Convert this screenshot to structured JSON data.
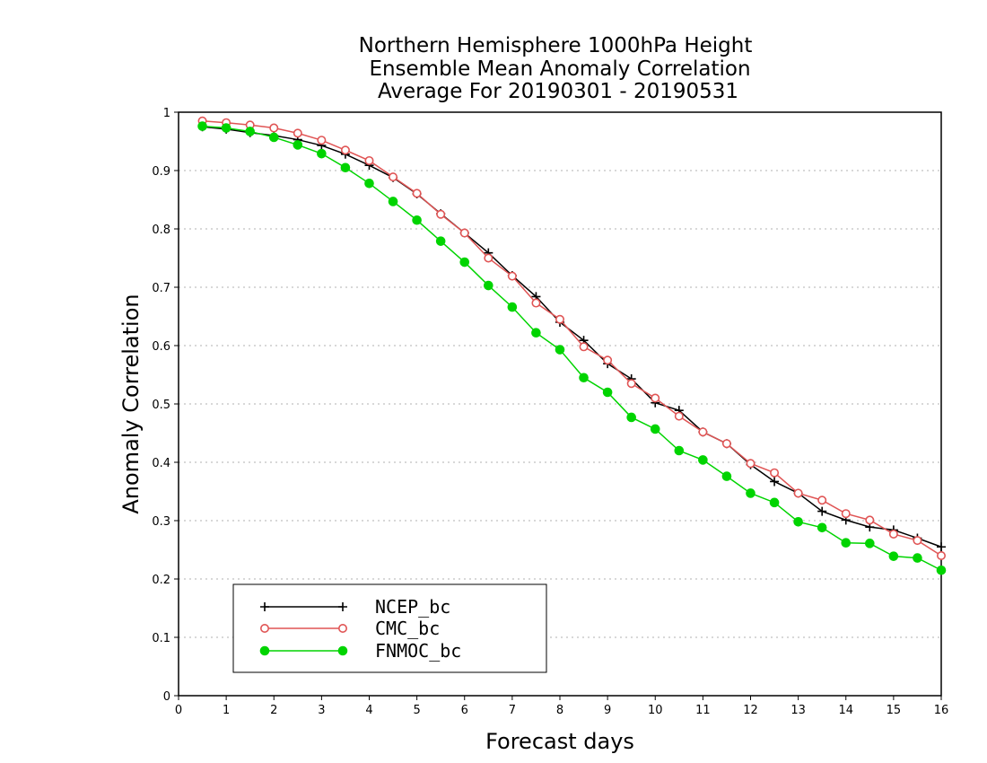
{
  "chart_data": {
    "type": "line",
    "title": [
      "Northern Hemisphere 1000hPa Height",
      "Ensemble Mean Anomaly Correlation",
      "Average For 20190301 - 20190531"
    ],
    "xlabel": "Forecast days",
    "ylabel": "Anomaly Correlation",
    "xlim": [
      0,
      16
    ],
    "ylim": [
      0,
      1
    ],
    "x_ticks": [
      "0",
      "1",
      "2",
      "3",
      "4",
      "5",
      "6",
      "7",
      "8",
      "9",
      "10",
      "11",
      "12",
      "13",
      "14",
      "15",
      "16"
    ],
    "y_ticks": [
      "0",
      "0.1",
      "0.2",
      "0.3",
      "0.4",
      "0.5",
      "0.6",
      "0.7",
      "0.8",
      "0.9",
      "1"
    ],
    "grid": "horizontal dotted",
    "legend_position": "bottom-left",
    "x": [
      0.5,
      1,
      1.5,
      2,
      2.5,
      3,
      3.5,
      4,
      4.5,
      5,
      5.5,
      6,
      6.5,
      7,
      7.5,
      8,
      8.5,
      9,
      9.5,
      10,
      10.5,
      11,
      11.5,
      12,
      12.5,
      13,
      13.5,
      14,
      14.5,
      15,
      15.5,
      16
    ],
    "series": [
      {
        "name": "NCEP_bc",
        "color": "#000000",
        "marker": "plus",
        "values": [
          0.975,
          0.971,
          0.965,
          0.96,
          0.953,
          0.943,
          0.928,
          0.909,
          0.888,
          0.86,
          0.826,
          0.793,
          0.759,
          0.72,
          0.684,
          0.64,
          0.609,
          0.569,
          0.543,
          0.502,
          0.489,
          0.452,
          0.432,
          0.396,
          0.367,
          0.347,
          0.316,
          0.301,
          0.289,
          0.284,
          0.27,
          0.255
        ]
      },
      {
        "name": "CMC_bc",
        "color": "#e05555",
        "marker": "open-circle",
        "values": [
          0.985,
          0.982,
          0.978,
          0.973,
          0.964,
          0.952,
          0.935,
          0.917,
          0.889,
          0.861,
          0.825,
          0.793,
          0.75,
          0.719,
          0.673,
          0.645,
          0.598,
          0.575,
          0.535,
          0.51,
          0.479,
          0.452,
          0.432,
          0.398,
          0.382,
          0.347,
          0.335,
          0.312,
          0.301,
          0.277,
          0.266,
          0.24
        ]
      },
      {
        "name": "FNMOC_bc",
        "color": "#00d400",
        "marker": "filled-circle",
        "values": [
          0.976,
          0.973,
          0.967,
          0.957,
          0.944,
          0.929,
          0.905,
          0.878,
          0.847,
          0.815,
          0.779,
          0.743,
          0.703,
          0.666,
          0.622,
          0.593,
          0.545,
          0.52,
          0.477,
          0.457,
          0.42,
          0.404,
          0.376,
          0.347,
          0.331,
          0.298,
          0.288,
          0.262,
          0.261,
          0.239,
          0.236,
          0.215
        ]
      }
    ]
  }
}
